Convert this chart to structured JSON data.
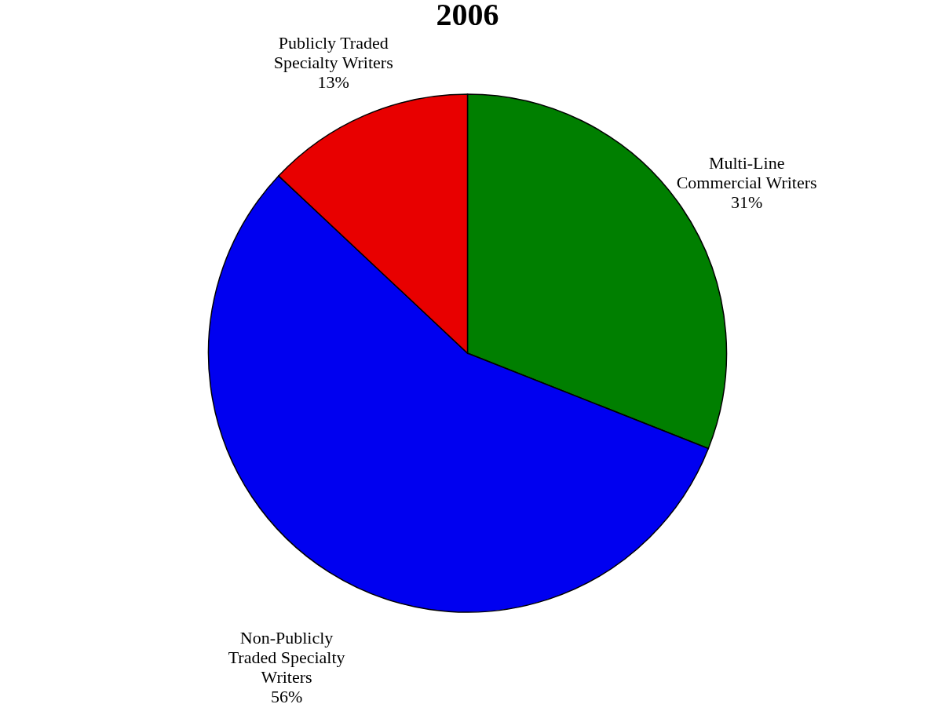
{
  "chart_data": {
    "type": "pie",
    "title": "2006",
    "categories": [
      "Multi-Line Commercial Writers",
      "Non-Publicly Traded Specialty Writers",
      "Publicly Traded Specialty Writers"
    ],
    "values": [
      31,
      56,
      13
    ],
    "colors": [
      "#007f00",
      "#0000f0",
      "#e80000"
    ],
    "value_labels": [
      "31%",
      "56%",
      "13%"
    ],
    "legend": false
  }
}
